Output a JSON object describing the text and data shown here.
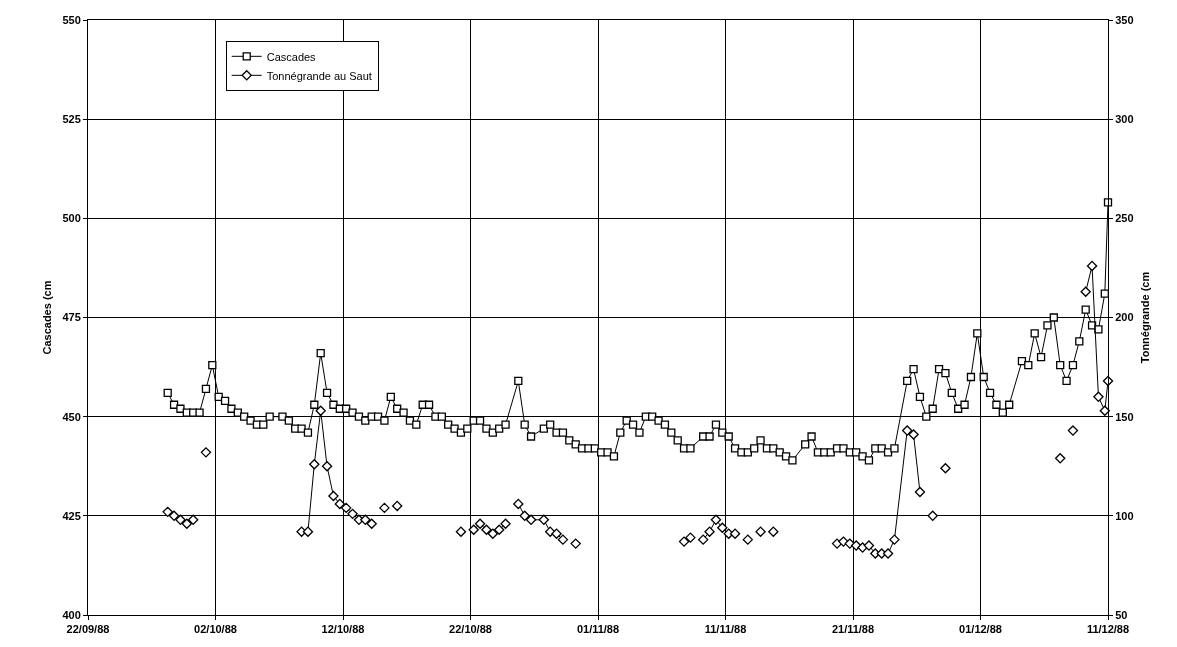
{
  "chart_data": {
    "type": "line",
    "ylabel": "Cascades (cm",
    "y2label": "Tonnégrande (cm",
    "xlim": [
      "1988-09-22",
      "1988-12-11"
    ],
    "xticks": [
      {
        "value": "1988-09-22",
        "label": "22/09/88"
      },
      {
        "value": "1988-10-02",
        "label": "02/10/88"
      },
      {
        "value": "1988-10-12",
        "label": "12/10/88"
      },
      {
        "value": "1988-10-22",
        "label": "22/10/88"
      },
      {
        "value": "1988-11-01",
        "label": "01/11/88"
      },
      {
        "value": "1988-11-11",
        "label": "11/11/88"
      },
      {
        "value": "1988-11-21",
        "label": "21/11/88"
      },
      {
        "value": "1988-12-01",
        "label": "01/12/88"
      },
      {
        "value": "1988-12-11",
        "label": "11/12/88"
      }
    ],
    "ylim": [
      400,
      550
    ],
    "yticks": [
      400,
      425,
      450,
      475,
      500,
      525,
      550
    ],
    "y2lim": [
      50,
      350
    ],
    "y2ticks": [
      50,
      100,
      150,
      200,
      250,
      300,
      350
    ],
    "grid": true,
    "legend": "top left",
    "line_style": "solid",
    "series": [
      {
        "name": "Cascades",
        "color": "#000000",
        "marker": "square",
        "x": [
          "1988-09-28T06:00",
          "1988-09-28T18:00",
          "1988-09-29T06:00",
          "1988-09-29T18:00",
          "1988-09-30T06:00",
          "1988-09-30T18:00",
          "1988-10-01T06:00",
          "1988-10-01T18:00",
          "1988-10-02T06:00",
          "1988-10-02T18:00",
          "1988-10-03T06:00",
          "1988-10-03T18:00",
          "1988-10-04T06:00",
          "1988-10-04T18:00",
          "1988-10-05T06:00",
          "1988-10-05T18:00",
          "1988-10-06T06:00",
          "1988-10-07T06:00",
          "1988-10-07T18:00",
          "1988-10-08T06:00",
          "1988-10-08T18:00",
          "1988-10-09T06:00",
          "1988-10-09T18:00",
          "1988-10-10T06:00",
          "1988-10-10T18:00",
          "1988-10-11T06:00",
          "1988-10-11T18:00",
          "1988-10-12T06:00",
          "1988-10-12T18:00",
          "1988-10-13T06:00",
          "1988-10-13T18:00",
          "1988-10-14T06:00",
          "1988-10-14T18:00",
          "1988-10-15T06:00",
          "1988-10-15T18:00",
          "1988-10-16T06:00",
          "1988-10-16T18:00",
          "1988-10-17T06:00",
          "1988-10-17T18:00",
          "1988-10-18T06:00",
          "1988-10-18T18:00",
          "1988-10-19T06:00",
          "1988-10-19T18:00",
          "1988-10-20T06:00",
          "1988-10-20T18:00",
          "1988-10-21T06:00",
          "1988-10-21T18:00",
          "1988-10-22T06:00",
          "1988-10-22T18:00",
          "1988-10-23T06:00",
          "1988-10-23T18:00",
          "1988-10-24T06:00",
          "1988-10-24T18:00",
          "1988-10-25T18:00",
          "1988-10-26T06:00",
          "1988-10-26T18:00",
          "1988-10-27T18:00",
          "1988-10-28T06:00",
          "1988-10-28T18:00",
          "1988-10-29T06:00",
          "1988-10-29T18:00",
          "1988-10-30T06:00",
          "1988-10-30T18:00",
          "1988-10-31T06:00",
          "1988-10-31T18:00",
          "1988-11-01T06:00",
          "1988-11-01T18:00",
          "1988-11-02T06:00",
          "1988-11-02T18:00",
          "1988-11-03T06:00",
          "1988-11-03T18:00",
          "1988-11-04T06:00",
          "1988-11-04T18:00",
          "1988-11-05T06:00",
          "1988-11-05T18:00",
          "1988-11-06T06:00",
          "1988-11-06T18:00",
          "1988-11-07T06:00",
          "1988-11-07T18:00",
          "1988-11-08T06:00",
          "1988-11-09T06:00",
          "1988-11-09T18:00",
          "1988-11-10T06:00",
          "1988-11-10T18:00",
          "1988-11-11T06:00",
          "1988-11-11T18:00",
          "1988-11-12T06:00",
          "1988-11-12T18:00",
          "1988-11-13T06:00",
          "1988-11-13T18:00",
          "1988-11-14T06:00",
          "1988-11-14T18:00",
          "1988-11-15T06:00",
          "1988-11-15T18:00",
          "1988-11-16T06:00",
          "1988-11-17T06:00",
          "1988-11-17T18:00",
          "1988-11-18T06:00",
          "1988-11-18T18:00",
          "1988-11-19T06:00",
          "1988-11-19T18:00",
          "1988-11-20T06:00",
          "1988-11-20T18:00",
          "1988-11-21T06:00",
          "1988-11-21T18:00",
          "1988-11-22T06:00",
          "1988-11-22T18:00",
          "1988-11-23T06:00",
          "1988-11-23T18:00",
          "1988-11-24T06:00",
          "1988-11-25T06:00",
          "1988-11-25T18:00",
          "1988-11-26T06:00",
          "1988-11-26T18:00",
          "1988-11-27T06:00",
          "1988-11-27T18:00",
          "1988-11-28T06:00",
          "1988-11-28T18:00",
          "1988-11-29T06:00",
          "1988-11-29T18:00",
          "1988-11-30T06:00",
          "1988-11-30T18:00",
          "1988-12-01T06:00",
          "1988-12-01T18:00",
          "1988-12-02T06:00",
          "1988-12-02T18:00",
          "1988-12-03T06:00",
          "1988-12-04T06:00",
          "1988-12-04T18:00",
          "1988-12-05T06:00",
          "1988-12-05T18:00",
          "1988-12-06T06:00",
          "1988-12-06T18:00",
          "1988-12-07T06:00",
          "1988-12-07T18:00",
          "1988-12-08T06:00",
          "1988-12-08T18:00",
          "1988-12-09T06:00",
          "1988-12-09T18:00",
          "1988-12-10T06:00",
          "1988-12-10T18:00",
          "1988-12-11T00:00"
        ],
        "values": [
          456,
          453,
          452,
          451,
          451,
          451,
          457,
          463,
          455,
          454,
          452,
          451,
          450,
          449,
          448,
          448,
          450,
          450,
          449,
          447,
          447,
          446,
          453,
          466,
          456,
          453,
          452,
          452,
          451,
          450,
          449,
          450,
          450,
          449,
          455,
          452,
          451,
          449,
          448,
          453,
          453,
          450,
          450,
          448,
          447,
          446,
          447,
          449,
          449,
          447,
          446,
          447,
          448,
          459,
          448,
          445,
          447,
          448,
          446,
          446,
          444,
          443,
          442,
          442,
          442,
          441,
          441,
          440,
          446,
          449,
          448,
          446,
          450,
          450,
          449,
          448,
          446,
          444,
          442,
          442,
          445,
          445,
          448,
          446,
          445,
          442,
          441,
          441,
          442,
          444,
          442,
          442,
          441,
          440,
          439,
          443,
          445,
          441,
          441,
          441,
          442,
          442,
          441,
          441,
          440,
          439,
          442,
          442,
          441,
          442,
          459,
          462,
          455,
          450,
          452,
          462,
          461,
          456,
          452,
          453,
          460,
          471,
          460,
          456,
          453,
          451,
          453,
          464,
          463,
          471,
          465,
          473,
          475,
          463,
          459,
          463,
          469,
          477,
          473,
          472,
          481,
          504
        ]
      },
      {
        "name": "Tonnégrande au Saut",
        "color": "#000000",
        "marker": "diamond",
        "axis": "y2",
        "x": [
          "1988-09-28T06:00",
          "1988-09-28T18:00",
          "1988-09-29T06:00",
          "1988-09-29T18:00",
          "1988-09-30T06:00",
          "1988-09-30T18:00",
          "1988-10-01T06:00",
          "1988-10-01T18:00",
          "1988-10-08T18:00",
          "1988-10-09T06:00",
          "1988-10-09T18:00",
          "1988-10-10T06:00",
          "1988-10-10T18:00",
          "1988-10-11T06:00",
          "1988-10-11T18:00",
          "1988-10-12T06:00",
          "1988-10-12T18:00",
          "1988-10-13T06:00",
          "1988-10-13T18:00",
          "1988-10-14T06:00",
          "1988-10-14T18:00",
          "1988-10-15T06:00",
          "1988-10-15T18:00",
          "1988-10-16T06:00",
          "1988-10-16T18:00",
          "1988-10-21T06:00",
          "1988-10-21T18:00",
          "1988-10-22T06:00",
          "1988-10-22T18:00",
          "1988-10-23T06:00",
          "1988-10-23T18:00",
          "1988-10-24T06:00",
          "1988-10-24T18:00",
          "1988-10-25T06:00",
          "1988-10-25T18:00",
          "1988-10-26T06:00",
          "1988-10-26T18:00",
          "1988-10-27T18:00",
          "1988-10-28T06:00",
          "1988-10-28T18:00",
          "1988-10-29T06:00",
          "1988-10-29T18:00",
          "1988-10-30T06:00",
          "1988-10-30T18:00",
          "1988-11-07T18:00",
          "1988-11-08T06:00",
          "1988-11-08T18:00",
          "1988-11-09T06:00",
          "1988-11-09T18:00",
          "1988-11-10T06:00",
          "1988-11-10T18:00",
          "1988-11-11T06:00",
          "1988-11-11T18:00",
          "1988-11-12T06:00",
          "1988-11-12T18:00",
          "1988-11-13T06:00",
          "1988-11-13T18:00",
          "1988-11-14T06:00",
          "1988-11-14T18:00",
          "1988-11-15T06:00",
          "1988-11-19T18:00",
          "1988-11-20T06:00",
          "1988-11-20T18:00",
          "1988-11-21T06:00",
          "1988-11-21T18:00",
          "1988-11-22T06:00",
          "1988-11-22T18:00",
          "1988-11-23T06:00",
          "1988-11-23T18:00",
          "1988-11-24T06:00",
          "1988-11-25T06:00",
          "1988-11-25T18:00",
          "1988-11-26T06:00",
          "1988-11-26T18:00",
          "1988-11-27T06:00",
          "1988-11-27T18:00",
          "1988-11-28T06:00",
          "1988-11-28T18:00",
          "1988-12-07T06:00",
          "1988-12-07T18:00",
          "1988-12-08T06:00",
          "1988-12-08T18:00",
          "1988-12-09T06:00",
          "1988-12-09T18:00",
          "1988-12-10T06:00",
          "1988-12-10T18:00",
          "1988-12-11T00:00"
        ],
        "values": [
          102,
          100,
          98,
          96,
          98,
          null,
          132,
          null,
          92,
          92,
          126,
          153,
          125,
          110,
          106,
          104,
          101,
          98,
          98,
          96,
          null,
          104,
          null,
          105,
          null,
          92,
          null,
          93,
          96,
          93,
          91,
          93,
          96,
          null,
          106,
          100,
          98,
          98,
          92,
          91,
          88,
          null,
          86,
          null,
          87,
          89,
          null,
          88,
          92,
          98,
          94,
          91,
          91,
          null,
          88,
          null,
          92,
          null,
          92,
          null,
          86,
          87,
          86,
          85,
          84,
          85,
          81,
          81,
          81,
          88,
          143,
          141,
          112,
          null,
          100,
          null,
          124,
          null,
          129,
          null,
          143,
          null,
          213,
          226,
          160,
          153,
          168
        ]
      }
    ]
  }
}
